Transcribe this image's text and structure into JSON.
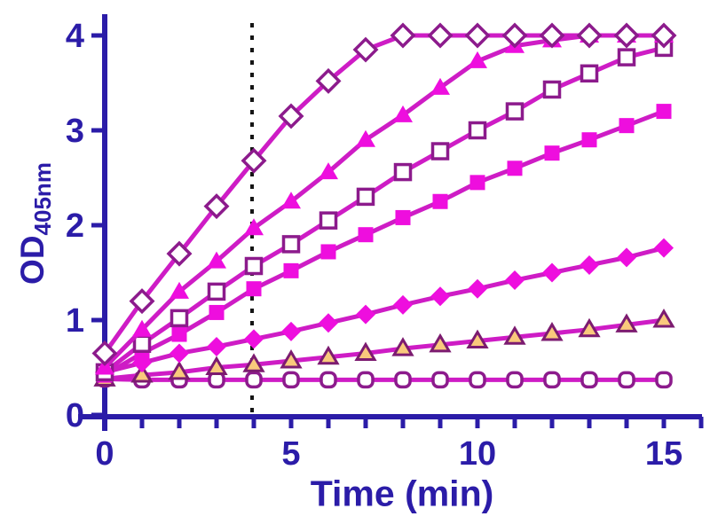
{
  "chart_data": {
    "type": "line",
    "title": "",
    "xlabel": "Time (min)",
    "ylabel_main": "OD",
    "ylabel_sub": "405nm",
    "x": [
      0,
      1,
      2,
      3,
      4,
      5,
      6,
      7,
      8,
      9,
      10,
      11,
      12,
      13,
      14,
      15
    ],
    "xlim": [
      -0.7,
      16
    ],
    "ylim": [
      0,
      4.2
    ],
    "xtick_labels": [
      "0",
      "5",
      "10",
      "15"
    ],
    "xtick_major_values": [
      0,
      5,
      10,
      15
    ],
    "xtick_minor_values": [
      0,
      1,
      2,
      3,
      4,
      5,
      6,
      7,
      8,
      9,
      10,
      11,
      12,
      13,
      14,
      15,
      16
    ],
    "ytick_labels": [
      "0",
      "1",
      "2",
      "3",
      "4"
    ],
    "ytick_values": [
      0,
      1,
      2,
      3,
      4
    ],
    "grid": false,
    "legend": "none",
    "annotation": {
      "type": "vertical-dotted-line",
      "x": 4
    },
    "series": [
      {
        "name": "open-circle",
        "marker": "open-circle",
        "values": [
          0.38,
          0.37,
          0.37,
          0.37,
          0.37,
          0.37,
          0.37,
          0.37,
          0.37,
          0.37,
          0.37,
          0.37,
          0.37,
          0.37,
          0.37,
          0.37
        ]
      },
      {
        "name": "open-triangle-tan",
        "marker": "open-triangle",
        "values": [
          0.38,
          0.42,
          0.45,
          0.5,
          0.53,
          0.57,
          0.61,
          0.65,
          0.7,
          0.74,
          0.78,
          0.82,
          0.86,
          0.9,
          0.95,
          1.0
        ]
      },
      {
        "name": "filled-diamond",
        "marker": "filled-diamond",
        "values": [
          0.45,
          0.55,
          0.65,
          0.72,
          0.8,
          0.88,
          0.97,
          1.06,
          1.16,
          1.25,
          1.33,
          1.42,
          1.5,
          1.58,
          1.66,
          1.76
        ]
      },
      {
        "name": "filled-square",
        "marker": "filled-square",
        "values": [
          0.42,
          0.65,
          0.85,
          1.08,
          1.33,
          1.52,
          1.72,
          1.9,
          2.08,
          2.25,
          2.45,
          2.6,
          2.76,
          2.9,
          3.05,
          3.2
        ]
      },
      {
        "name": "open-square",
        "marker": "open-square",
        "values": [
          0.45,
          0.75,
          1.02,
          1.3,
          1.57,
          1.8,
          2.05,
          2.3,
          2.56,
          2.78,
          3.0,
          3.2,
          3.43,
          3.6,
          3.77,
          3.87
        ]
      },
      {
        "name": "filled-triangle",
        "marker": "filled-triangle",
        "values": [
          0.5,
          0.9,
          1.3,
          1.62,
          1.97,
          2.25,
          2.56,
          2.9,
          3.16,
          3.45,
          3.73,
          3.89,
          3.95,
          4.0,
          4.0,
          4.0
        ]
      },
      {
        "name": "open-diamond",
        "marker": "open-diamond",
        "values": [
          0.65,
          1.2,
          1.7,
          2.2,
          2.68,
          3.15,
          3.52,
          3.85,
          4.0,
          4.0,
          4.0,
          4.0,
          4.0,
          4.0,
          4.0,
          4.0
        ]
      }
    ],
    "colors": {
      "axis": "#2b1ca8",
      "line": "#ce1cc5",
      "filled_marker": "#ee0ede",
      "open_marker_stroke": "#8c1b8c",
      "open_marker_fill": "#ffffff",
      "tan_fill": "#f9c97c",
      "tan_stroke": "#7c1b70",
      "dotted_line": "#151515",
      "background": "#ffffff"
    }
  }
}
